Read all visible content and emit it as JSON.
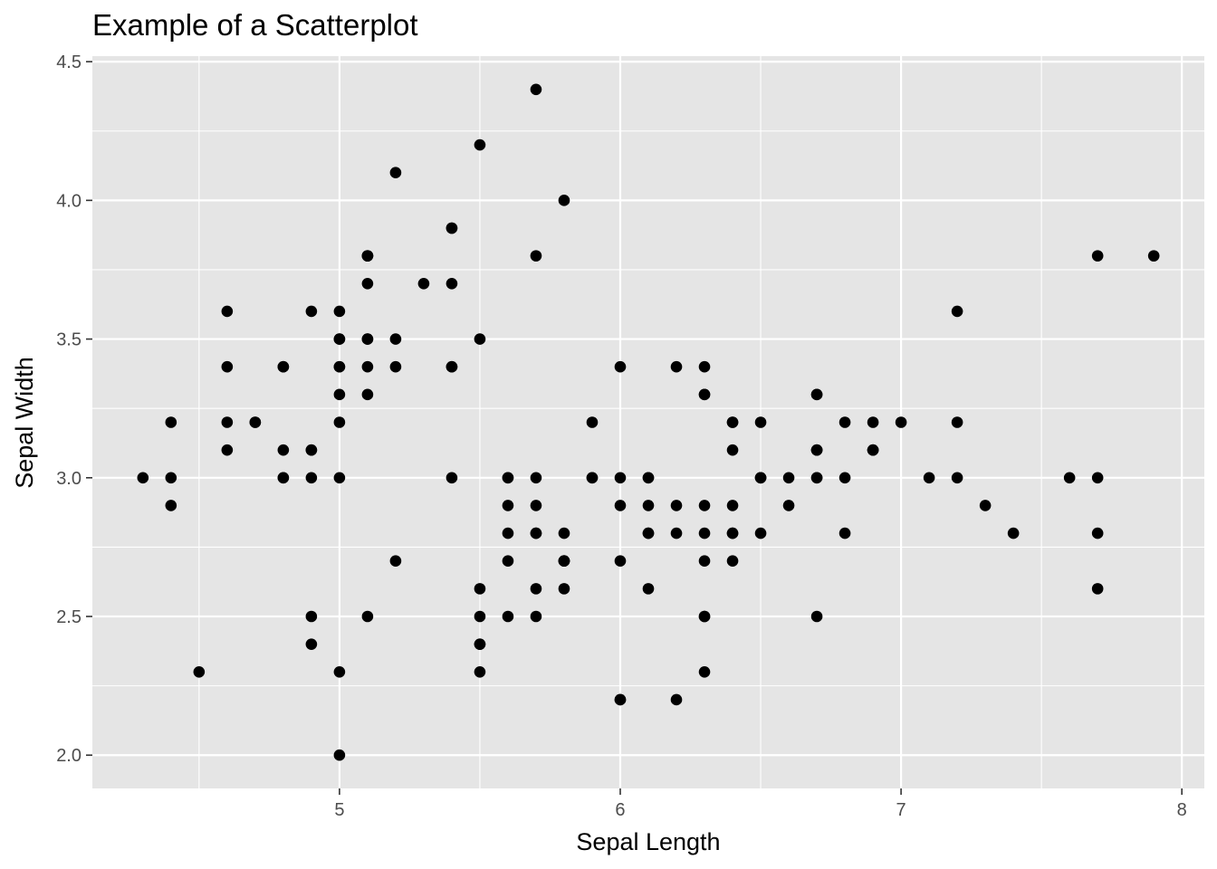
{
  "chart_data": {
    "type": "scatter",
    "title": "Example of a Scatterplot",
    "xlabel": "Sepal Length",
    "ylabel": "Sepal Width",
    "xlim": [
      4.12,
      8.08
    ],
    "ylim": [
      1.88,
      4.52
    ],
    "x_ticks": [
      5,
      6,
      7,
      8
    ],
    "x_tick_labels": [
      "5",
      "6",
      "7",
      "8"
    ],
    "y_ticks": [
      2.0,
      2.5,
      3.0,
      3.5,
      4.0,
      4.5
    ],
    "y_tick_labels": [
      "2.0",
      "2.5",
      "3.0",
      "3.5",
      "4.0",
      "4.5"
    ],
    "grid": true,
    "background": "#e5e5e5",
    "grid_color": "#ffffff",
    "point_color": "#000000",
    "points": [
      [
        5.1,
        3.5
      ],
      [
        4.9,
        3.0
      ],
      [
        4.7,
        3.2
      ],
      [
        4.6,
        3.1
      ],
      [
        5.0,
        3.6
      ],
      [
        5.4,
        3.9
      ],
      [
        4.6,
        3.4
      ],
      [
        5.0,
        3.4
      ],
      [
        4.4,
        2.9
      ],
      [
        4.9,
        3.1
      ],
      [
        5.4,
        3.7
      ],
      [
        4.8,
        3.4
      ],
      [
        4.8,
        3.0
      ],
      [
        4.3,
        3.0
      ],
      [
        5.8,
        4.0
      ],
      [
        5.7,
        4.4
      ],
      [
        5.4,
        3.9
      ],
      [
        5.1,
        3.5
      ],
      [
        5.7,
        3.8
      ],
      [
        5.1,
        3.8
      ],
      [
        5.4,
        3.4
      ],
      [
        5.1,
        3.7
      ],
      [
        4.6,
        3.6
      ],
      [
        5.1,
        3.3
      ],
      [
        4.8,
        3.4
      ],
      [
        5.0,
        3.0
      ],
      [
        5.0,
        3.4
      ],
      [
        5.2,
        3.5
      ],
      [
        5.2,
        3.4
      ],
      [
        4.7,
        3.2
      ],
      [
        4.8,
        3.1
      ],
      [
        5.4,
        3.4
      ],
      [
        5.2,
        4.1
      ],
      [
        5.5,
        4.2
      ],
      [
        4.9,
        3.1
      ],
      [
        5.0,
        3.2
      ],
      [
        5.5,
        3.5
      ],
      [
        4.9,
        3.6
      ],
      [
        4.4,
        3.0
      ],
      [
        5.1,
        3.4
      ],
      [
        5.0,
        3.5
      ],
      [
        4.5,
        2.3
      ],
      [
        4.4,
        3.2
      ],
      [
        5.0,
        3.5
      ],
      [
        5.1,
        3.8
      ],
      [
        4.8,
        3.0
      ],
      [
        5.1,
        3.8
      ],
      [
        4.6,
        3.2
      ],
      [
        5.3,
        3.7
      ],
      [
        5.0,
        3.3
      ],
      [
        7.0,
        3.2
      ],
      [
        6.4,
        3.2
      ],
      [
        6.9,
        3.1
      ],
      [
        5.5,
        2.3
      ],
      [
        6.5,
        2.8
      ],
      [
        5.7,
        2.8
      ],
      [
        6.3,
        3.3
      ],
      [
        4.9,
        2.4
      ],
      [
        6.6,
        2.9
      ],
      [
        5.2,
        2.7
      ],
      [
        5.0,
        2.0
      ],
      [
        5.9,
        3.0
      ],
      [
        6.0,
        2.2
      ],
      [
        6.1,
        2.9
      ],
      [
        5.6,
        2.9
      ],
      [
        6.7,
        3.1
      ],
      [
        5.6,
        3.0
      ],
      [
        5.8,
        2.7
      ],
      [
        6.2,
        2.2
      ],
      [
        5.6,
        2.5
      ],
      [
        5.9,
        3.2
      ],
      [
        6.1,
        2.8
      ],
      [
        6.3,
        2.5
      ],
      [
        6.1,
        2.8
      ],
      [
        6.4,
        2.9
      ],
      [
        6.6,
        3.0
      ],
      [
        6.8,
        2.8
      ],
      [
        6.7,
        3.0
      ],
      [
        6.0,
        2.9
      ],
      [
        5.7,
        2.6
      ],
      [
        5.5,
        2.4
      ],
      [
        5.5,
        2.4
      ],
      [
        5.8,
        2.7
      ],
      [
        6.0,
        2.7
      ],
      [
        5.4,
        3.0
      ],
      [
        6.0,
        3.4
      ],
      [
        6.7,
        3.1
      ],
      [
        6.3,
        2.3
      ],
      [
        5.6,
        3.0
      ],
      [
        5.5,
        2.5
      ],
      [
        5.5,
        2.6
      ],
      [
        6.1,
        3.0
      ],
      [
        5.8,
        2.6
      ],
      [
        5.0,
        2.3
      ],
      [
        5.6,
        2.7
      ],
      [
        5.7,
        3.0
      ],
      [
        5.7,
        2.9
      ],
      [
        6.2,
        2.9
      ],
      [
        5.1,
        2.5
      ],
      [
        5.7,
        2.8
      ],
      [
        6.3,
        3.3
      ],
      [
        5.8,
        2.7
      ],
      [
        7.1,
        3.0
      ],
      [
        6.3,
        2.9
      ],
      [
        6.5,
        3.0
      ],
      [
        7.6,
        3.0
      ],
      [
        4.9,
        2.5
      ],
      [
        7.3,
        2.9
      ],
      [
        6.7,
        2.5
      ],
      [
        7.2,
        3.6
      ],
      [
        6.5,
        3.2
      ],
      [
        6.4,
        2.7
      ],
      [
        6.8,
        3.0
      ],
      [
        5.7,
        2.5
      ],
      [
        5.8,
        2.8
      ],
      [
        6.4,
        3.2
      ],
      [
        6.5,
        3.0
      ],
      [
        7.7,
        3.8
      ],
      [
        7.7,
        2.6
      ],
      [
        6.0,
        2.2
      ],
      [
        6.9,
        3.2
      ],
      [
        5.6,
        2.8
      ],
      [
        7.7,
        2.8
      ],
      [
        6.3,
        2.7
      ],
      [
        6.7,
        3.3
      ],
      [
        7.2,
        3.2
      ],
      [
        6.2,
        2.8
      ],
      [
        6.1,
        3.0
      ],
      [
        6.4,
        2.8
      ],
      [
        7.2,
        3.0
      ],
      [
        7.4,
        2.8
      ],
      [
        7.9,
        3.8
      ],
      [
        6.4,
        2.8
      ],
      [
        6.3,
        2.8
      ],
      [
        6.1,
        2.6
      ],
      [
        7.7,
        3.0
      ],
      [
        6.3,
        3.4
      ],
      [
        6.4,
        3.1
      ],
      [
        6.0,
        3.0
      ],
      [
        6.9,
        3.1
      ],
      [
        6.7,
        3.1
      ],
      [
        6.9,
        3.1
      ],
      [
        5.8,
        2.7
      ],
      [
        6.8,
        3.2
      ],
      [
        6.7,
        3.3
      ],
      [
        6.7,
        3.0
      ],
      [
        6.3,
        2.5
      ],
      [
        6.5,
        3.0
      ],
      [
        6.2,
        3.4
      ],
      [
        5.9,
        3.0
      ]
    ]
  }
}
